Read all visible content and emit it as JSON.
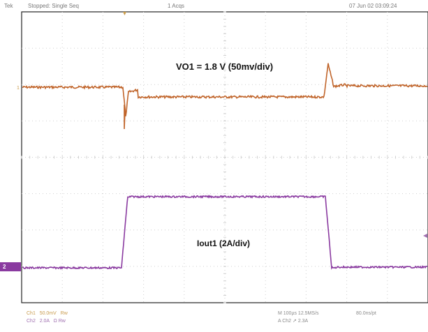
{
  "header": {
    "tek_label": "Tek",
    "acq_state": "Stopped: Single Seq",
    "acq_count": "1 Acqs",
    "timestamp": "07 Jun 02 03:09:24"
  },
  "annotations": {
    "ch1_label": "VO1 = 1.8 V (50mv/div)",
    "ch2_label": "Iout1 (2A/div)"
  },
  "markers": {
    "ch1_marker": "1",
    "ch2_marker": "2"
  },
  "footer": {
    "ch1_name": "Ch1",
    "ch1_scale": "50.0mV",
    "ch1_flag": "Rw",
    "ch2_name": "Ch2",
    "ch2_scale": "2.0A",
    "ch2_extra": "Ω",
    "ch2_flag": "Rw",
    "timebase": "M 100µs 12.5MS/s",
    "trigger": "A Ch2 ↗ 2.3A",
    "record": "80.0ns/pt"
  },
  "colors": {
    "ch1_trace": "#c0642a",
    "ch2_trace": "#8a3aa0",
    "grid": "#c8c8c8",
    "frame": "#222222"
  }
}
